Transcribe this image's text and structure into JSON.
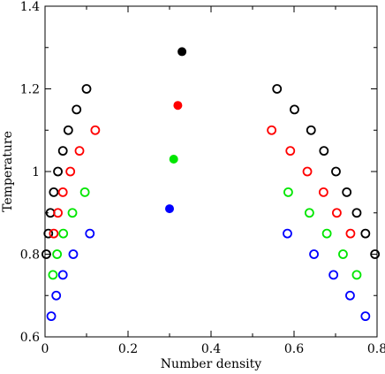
{
  "chart_data": {
    "type": "scatter",
    "title": "",
    "xlabel": "Number density",
    "ylabel": "Temperature",
    "xlim": [
      0,
      0.8
    ],
    "ylim": [
      0.6,
      1.4
    ],
    "x_ticks": [
      {
        "value": 0,
        "label": "0"
      },
      {
        "value": 0.2,
        "label": "0.2"
      },
      {
        "value": 0.4,
        "label": "0.4"
      },
      {
        "value": 0.6,
        "label": "0.6"
      },
      {
        "value": 0.8,
        "label": "0.8"
      }
    ],
    "y_ticks": [
      {
        "value": 0.6,
        "label": "0.6"
      },
      {
        "value": 0.8,
        "label": "0.8"
      },
      {
        "value": 1.0,
        "label": "1"
      },
      {
        "value": 1.2,
        "label": "1.2"
      },
      {
        "value": 1.4,
        "label": "1.4"
      }
    ],
    "grid": false,
    "legend": "none",
    "series": [
      {
        "color": "#000000",
        "marker": "open-circle",
        "points": [
          {
            "x": 0.003,
            "y": 0.8
          },
          {
            "x": 0.008,
            "y": 0.85
          },
          {
            "x": 0.013,
            "y": 0.9
          },
          {
            "x": 0.021,
            "y": 0.95
          },
          {
            "x": 0.031,
            "y": 1.0
          },
          {
            "x": 0.043,
            "y": 1.05
          },
          {
            "x": 0.056,
            "y": 1.1
          },
          {
            "x": 0.076,
            "y": 1.15
          },
          {
            "x": 0.1,
            "y": 1.2
          },
          {
            "x": 0.559,
            "y": 1.2
          },
          {
            "x": 0.601,
            "y": 1.15
          },
          {
            "x": 0.641,
            "y": 1.1
          },
          {
            "x": 0.672,
            "y": 1.05
          },
          {
            "x": 0.701,
            "y": 1.0
          },
          {
            "x": 0.727,
            "y": 0.95
          },
          {
            "x": 0.751,
            "y": 0.9
          },
          {
            "x": 0.772,
            "y": 0.85
          },
          {
            "x": 0.795,
            "y": 0.8
          }
        ]
      },
      {
        "color": "#000000",
        "marker": "filled-circle",
        "points": [
          {
            "x": 0.33,
            "y": 1.29
          }
        ]
      },
      {
        "color": "#ff0000",
        "marker": "open-circle",
        "points": [
          {
            "x": 0.021,
            "y": 0.85
          },
          {
            "x": 0.031,
            "y": 0.9
          },
          {
            "x": 0.043,
            "y": 0.95
          },
          {
            "x": 0.061,
            "y": 1.0
          },
          {
            "x": 0.083,
            "y": 1.05
          },
          {
            "x": 0.121,
            "y": 1.1
          },
          {
            "x": 0.546,
            "y": 1.1
          },
          {
            "x": 0.591,
            "y": 1.05
          },
          {
            "x": 0.632,
            "y": 1.0
          },
          {
            "x": 0.671,
            "y": 0.95
          },
          {
            "x": 0.703,
            "y": 0.9
          },
          {
            "x": 0.736,
            "y": 0.85
          }
        ]
      },
      {
        "color": "#ff0000",
        "marker": "filled-circle",
        "points": [
          {
            "x": 0.32,
            "y": 1.16
          }
        ]
      },
      {
        "color": "#00e600",
        "marker": "open-circle",
        "points": [
          {
            "x": 0.019,
            "y": 0.75
          },
          {
            "x": 0.029,
            "y": 0.8
          },
          {
            "x": 0.044,
            "y": 0.85
          },
          {
            "x": 0.066,
            "y": 0.9
          },
          {
            "x": 0.096,
            "y": 0.95
          },
          {
            "x": 0.586,
            "y": 0.95
          },
          {
            "x": 0.637,
            "y": 0.9
          },
          {
            "x": 0.679,
            "y": 0.85
          },
          {
            "x": 0.718,
            "y": 0.8
          },
          {
            "x": 0.751,
            "y": 0.75
          }
        ]
      },
      {
        "color": "#00e600",
        "marker": "filled-circle",
        "points": [
          {
            "x": 0.31,
            "y": 1.03
          }
        ]
      },
      {
        "color": "#0000ff",
        "marker": "open-circle",
        "points": [
          {
            "x": 0.015,
            "y": 0.65
          },
          {
            "x": 0.027,
            "y": 0.7
          },
          {
            "x": 0.043,
            "y": 0.75
          },
          {
            "x": 0.068,
            "y": 0.8
          },
          {
            "x": 0.108,
            "y": 0.85
          },
          {
            "x": 0.584,
            "y": 0.85
          },
          {
            "x": 0.648,
            "y": 0.8
          },
          {
            "x": 0.695,
            "y": 0.75
          },
          {
            "x": 0.735,
            "y": 0.7
          },
          {
            "x": 0.772,
            "y": 0.65
          }
        ]
      },
      {
        "color": "#0000ff",
        "marker": "filled-circle",
        "points": [
          {
            "x": 0.3,
            "y": 0.91
          }
        ]
      }
    ]
  }
}
